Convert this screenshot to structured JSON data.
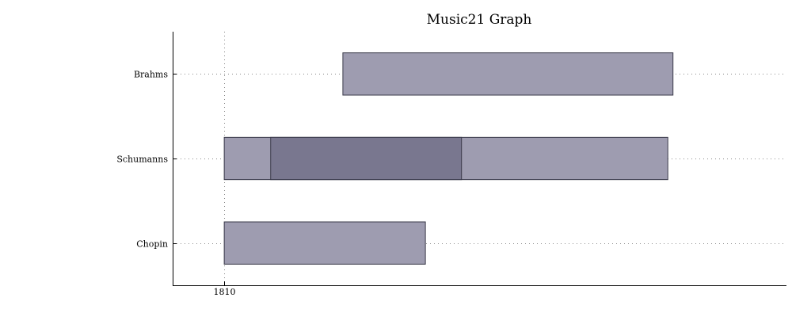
{
  "chart_data": {
    "type": "bar",
    "orientation": "horizontal",
    "title": "Music21 Graph",
    "xlabel": "",
    "ylabel": "",
    "xlim": [
      1800,
      1919
    ],
    "x_ticks": [
      {
        "value": 1810,
        "label": "1810"
      }
    ],
    "categories": [
      "Brahms",
      "Schumanns",
      "Chopin"
    ],
    "spans": [
      {
        "category": "Brahms",
        "start": 1833,
        "end": 1897,
        "shade": "light"
      },
      {
        "category": "Schumanns",
        "start": 1810,
        "end": 1896,
        "shade": "light"
      },
      {
        "category": "Schumanns",
        "start": 1819,
        "end": 1856,
        "shade": "dark"
      },
      {
        "category": "Chopin",
        "start": 1810,
        "end": 1849,
        "shade": "light"
      }
    ],
    "grid": true,
    "legend": "none",
    "colors": {
      "light": "#9e9cb0",
      "dark": "#79778f",
      "edge": "#3a3a4a"
    }
  }
}
